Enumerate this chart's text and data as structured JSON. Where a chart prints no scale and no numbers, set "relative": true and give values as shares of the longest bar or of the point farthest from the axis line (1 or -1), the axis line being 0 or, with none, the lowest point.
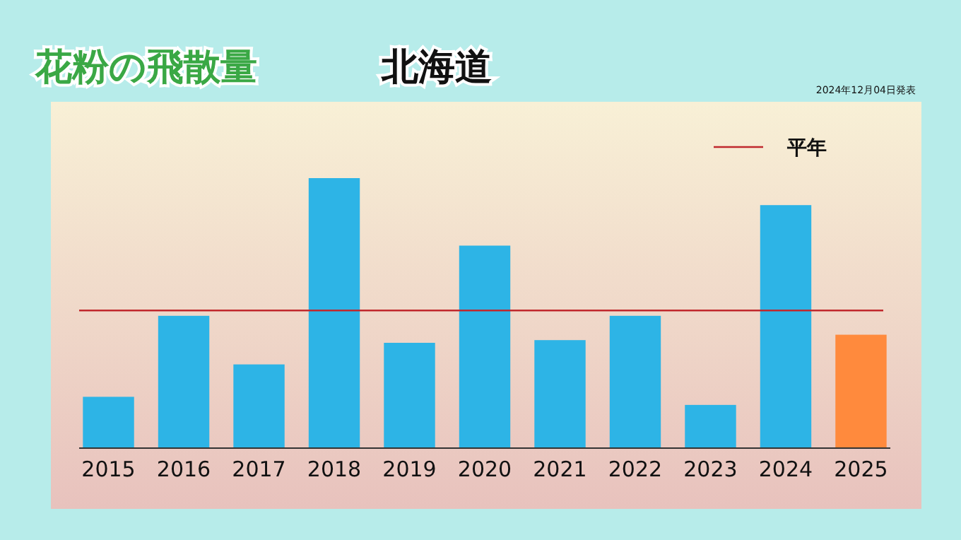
{
  "chart_data": {
    "type": "bar",
    "title": "花粉の飛散量",
    "subtitle": "北海道",
    "categories": [
      "2015",
      "2016",
      "2017",
      "2018",
      "2019",
      "2020",
      "2021",
      "2022",
      "2023",
      "2024",
      "2025"
    ],
    "values": [
      0.19,
      0.49,
      0.31,
      1,
      0.39,
      0.75,
      0.4,
      0.49,
      0.16,
      0.9,
      0.42
    ],
    "colors": [
      "#2db4e6",
      "#2db4e6",
      "#2db4e6",
      "#2db4e6",
      "#2db4e6",
      "#2db4e6",
      "#2db4e6",
      "#2db4e6",
      "#2db4e6",
      "#2db4e6",
      "#ff8a3d"
    ],
    "relative": true,
    "ref_lines": [
      {
        "axis": "y",
        "value": 0.51,
        "label": "平年",
        "color": "#c0282d"
      }
    ],
    "legend": "top right",
    "annotations": [
      "2024年12月04日発表"
    ]
  }
}
